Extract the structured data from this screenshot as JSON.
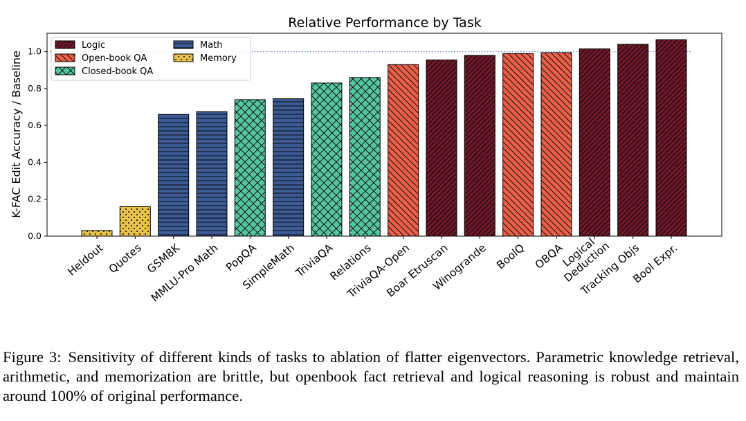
{
  "chart_data": {
    "type": "bar",
    "title": "Relative Performance by Task",
    "xlabel": "",
    "ylabel": "K-FAC Edit Accuracy / Baseline",
    "ylim": [
      0,
      1.1
    ],
    "yticks": [
      "0.0",
      "0.2",
      "0.4",
      "0.6",
      "0.8",
      "1.0"
    ],
    "grid": false,
    "legend_position": "top-left",
    "reference_line": 1.0,
    "categories": [
      "Heldout",
      "Quotes",
      "GSM8K",
      "MMLU-Pro Math",
      "PopQA",
      "SimpleMath",
      "TriviaQA",
      "Relations",
      "TriviaQA-Open",
      "Boar Etruscan",
      "Winogrande",
      "BoolQ",
      "OBQA",
      "Logical\nDeduction",
      "Tracking Objs",
      "Bool Expr."
    ],
    "values": [
      0.03,
      0.16,
      0.66,
      0.675,
      0.74,
      0.745,
      0.83,
      0.86,
      0.93,
      0.955,
      0.98,
      0.99,
      0.995,
      1.015,
      1.04,
      1.065
    ],
    "groups": [
      "Memory",
      "Memory",
      "Math",
      "Math",
      "Closed-book QA",
      "Math",
      "Closed-book QA",
      "Closed-book QA",
      "Open-book QA",
      "Logic",
      "Logic",
      "Open-book QA",
      "Open-book QA",
      "Logic",
      "Logic",
      "Logic"
    ],
    "legend": [
      {
        "name": "Logic",
        "color": "#6e1a2b",
        "pattern": "diag-dense"
      },
      {
        "name": "Open-book QA",
        "color": "#e8604a",
        "pattern": "diag"
      },
      {
        "name": "Closed-book QA",
        "color": "#57c4a0",
        "pattern": "cross"
      },
      {
        "name": "Math",
        "color": "#3c5a93",
        "pattern": "horizontal"
      },
      {
        "name": "Memory",
        "color": "#e8c14a",
        "pattern": "dots"
      }
    ]
  },
  "caption": {
    "label": "Figure 3:",
    "text": "Sensitivity of different kinds of tasks to ablation of flatter eigenvectors. Parametric knowledge retrieval, arithmetic, and memorization are brittle, but openbook fact retrieval and logical reasoning is robust and maintain around 100% of original performance."
  }
}
